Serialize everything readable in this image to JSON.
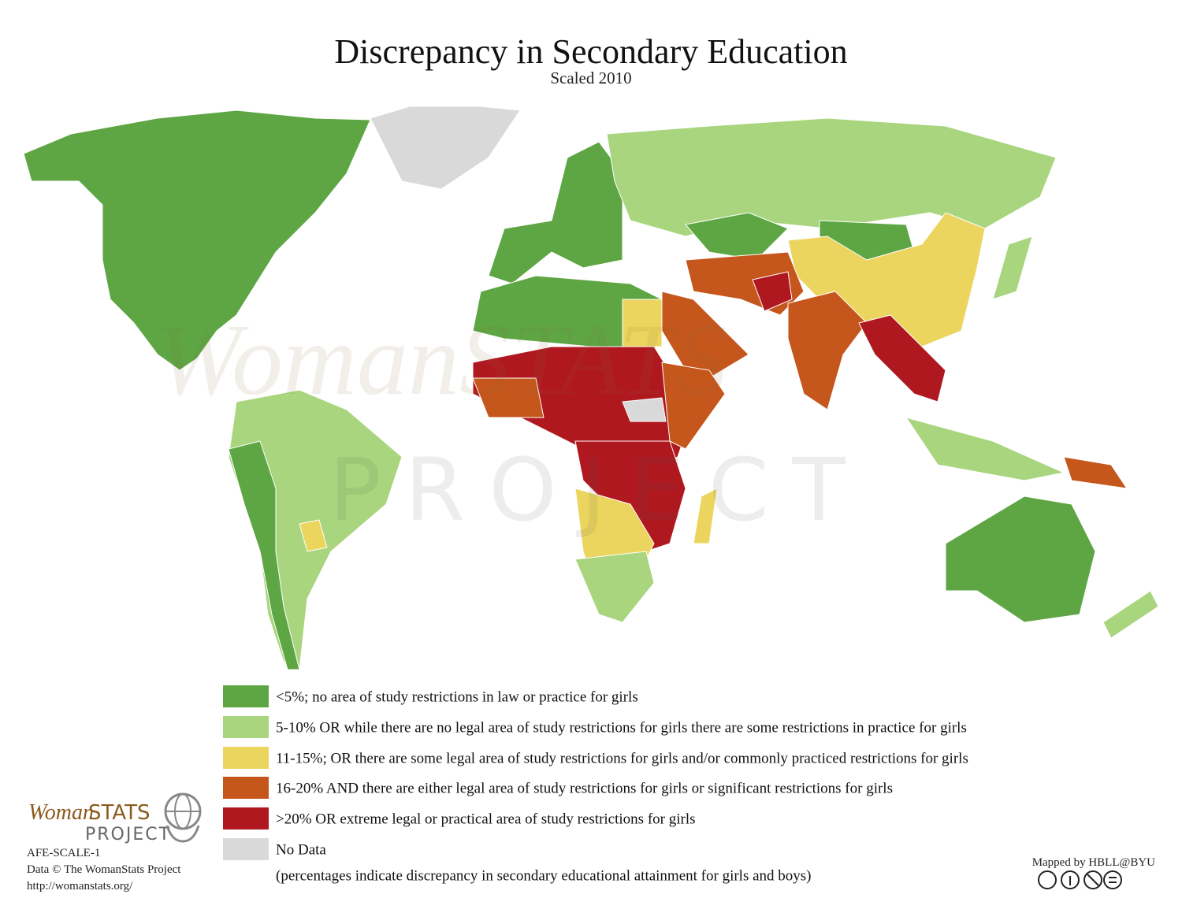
{
  "header": {
    "title": "Discrepancy in Secondary Education",
    "subtitle": "Scaled 2010"
  },
  "watermark": {
    "brand": "WomanSTATS",
    "sub": "PROJECT"
  },
  "legend": {
    "items": [
      {
        "label": "<5%; no area of study restrictions in law or practice for girls",
        "color": "#5ea644"
      },
      {
        "label": "5-10% OR while there are no legal area of study restrictions for girls there are some restrictions in practice for girls",
        "color": "#a8d57d"
      },
      {
        "label": "11-15%; OR there are some legal area of study restrictions for girls and/or commonly practiced restrictions for girls",
        "color": "#ecd55e"
      },
      {
        "label": "16-20% AND there are either legal area of study restrictions for girls or significant restrictions for girls",
        "color": "#c5561c"
      },
      {
        "label": ">20% OR extreme legal or practical area of study restrictions for girls",
        "color": "#b01820"
      },
      {
        "label": "No Data",
        "color": "#d9d9d9"
      }
    ],
    "note": "(percentages indicate discrepancy in secondary educational attainment for girls and boys)"
  },
  "logo": {
    "woman": "Woman",
    "stats": "STATS",
    "project": "PROJECT"
  },
  "footer": {
    "code": "AFE-SCALE-1",
    "credit": "Data © The WomanStats Project",
    "url": "http://womanstats.org/",
    "mapped_by": "Mapped by HBLL@BYU"
  }
}
